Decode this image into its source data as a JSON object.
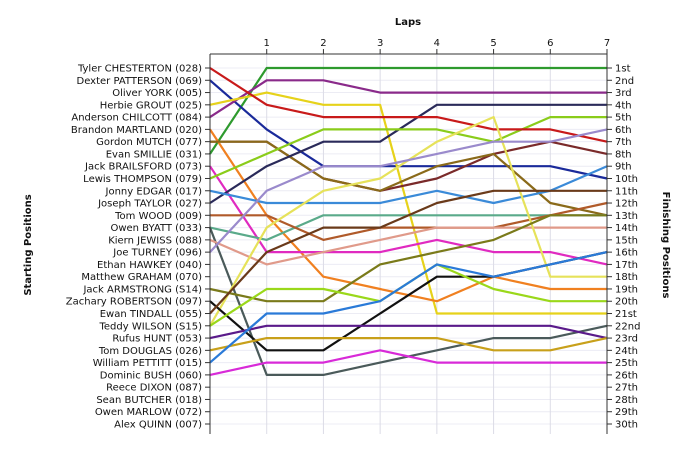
{
  "chart_data": {
    "type": "line",
    "x_title": "Laps",
    "y_left_title": "Starting Positions",
    "y_right_title": "Finishing Positions",
    "x": [
      0,
      1,
      2,
      3,
      4,
      5,
      6,
      7
    ],
    "x_tick_labels": [
      "1",
      "2",
      "3",
      "4",
      "5",
      "6",
      "7"
    ],
    "y_range": [
      1,
      30
    ],
    "y_reversed": true,
    "grid": true,
    "starting_labels": [
      "Tyler CHESTERTON (028)",
      "Dexter PATTERSON (069)",
      "Oliver YORK (005)",
      "Herbie GROUT (025)",
      "Anderson CHILCOTT (084)",
      "Brandon MARTLAND (020)",
      "Gordon MUTCH (077)",
      "Evan SMILLIE (031)",
      "Jack BRAILSFORD (073)",
      "Lewis THOMPSON (079)",
      "Jonny EDGAR (017)",
      "Joseph TAYLOR (027)",
      "Tom WOOD (009)",
      "Owen BYATT (033)",
      "Kiern JEWISS (088)",
      "Joe TURNEY (096)",
      "Ethan HAWKEY (040)",
      "Matthew GRAHAM (070)",
      "Jack ARMSTRONG (S14)",
      "Zachary ROBERTSON (097)",
      "Ewan TINDALL (055)",
      "Teddy WILSON (S15)",
      "Rufus HUNT (053)",
      "Tom DOUGLAS (026)",
      "William PETTITT (015)",
      "Dominic BUSH (060)",
      "Reece DIXON (087)",
      "Sean BUTCHER (018)",
      "Owen MARLOW (072)",
      "Alex QUINN (007)"
    ],
    "finishing_labels": [
      "1st",
      "2nd",
      "3rd",
      "4th",
      "5th",
      "6th",
      "7th",
      "8th",
      "9th",
      "10th",
      "11th",
      "12th",
      "13th",
      "14th",
      "15th",
      "16th",
      "17th",
      "18th",
      "19th",
      "20th",
      "21st",
      "22nd",
      "23rd",
      "24th",
      "25th",
      "26th",
      "27th",
      "28th",
      "29th",
      "30th"
    ],
    "series": [
      {
        "color": "#2e9a2e",
        "values": [
          8,
          1,
          1,
          1,
          1,
          1,
          1,
          1
        ]
      },
      {
        "color": "#1a2a9a",
        "values": [
          2,
          6,
          9,
          9,
          9,
          9,
          9,
          10
        ]
      },
      {
        "color": "#8a2a8a",
        "values": [
          5,
          2,
          2,
          3,
          3,
          3,
          3,
          3
        ]
      },
      {
        "color": "#e6d21a",
        "values": [
          4,
          3,
          4,
          4,
          21,
          21,
          21,
          21
        ]
      },
      {
        "color": "#7a2a2a",
        "values": [
          7,
          7,
          10,
          11,
          10,
          8,
          7,
          8
        ]
      },
      {
        "color": "#f08020",
        "values": [
          6,
          13,
          18,
          19,
          20,
          18,
          19,
          19
        ]
      },
      {
        "color": "#8a6a1a",
        "values": [
          7,
          7,
          10,
          11,
          9,
          8,
          12,
          13
        ]
      },
      {
        "color": "#e02ac0",
        "values": [
          9,
          16,
          16,
          16,
          15,
          16,
          16,
          17
        ]
      },
      {
        "color": "#2a2a5a",
        "values": [
          12,
          9,
          7,
          7,
          4,
          4,
          4,
          4
        ]
      },
      {
        "color": "#8acc1a",
        "values": [
          10,
          8,
          6,
          6,
          6,
          7,
          5,
          5
        ]
      },
      {
        "color": "#c81a1a",
        "values": [
          1,
          4,
          5,
          5,
          5,
          6,
          6,
          7
        ]
      },
      {
        "color": "#3a8ad8",
        "values": [
          11,
          12,
          12,
          12,
          11,
          12,
          11,
          9
        ]
      },
      {
        "color": "#5aaa8a",
        "values": [
          14,
          15,
          13,
          13,
          13,
          13,
          13,
          13
        ]
      },
      {
        "color": "#4a5a5a",
        "values": [
          14,
          26,
          26,
          25,
          24,
          23,
          23,
          22
        ]
      },
      {
        "color": "#b05a2a",
        "values": [
          13,
          13,
          15,
          14,
          14,
          14,
          13,
          12
        ]
      },
      {
        "color": "#e09a8a",
        "values": [
          15,
          17,
          16,
          15,
          14,
          14,
          14,
          14
        ]
      },
      {
        "color": "#e6e25a",
        "values": [
          22,
          14,
          11,
          10,
          7,
          5,
          18,
          18
        ]
      },
      {
        "color": "#9a8acc",
        "values": [
          16,
          11,
          9,
          9,
          8,
          7,
          7,
          6
        ]
      },
      {
        "color": "#7a7a1a",
        "values": [
          19,
          20,
          20,
          17,
          16,
          15,
          13,
          13
        ]
      },
      {
        "color": "#111111",
        "values": [
          20,
          24,
          24,
          21,
          18,
          18,
          17,
          16
        ]
      },
      {
        "color": "#6a3a1a",
        "values": [
          21,
          16,
          14,
          14,
          12,
          11,
          11,
          11
        ]
      },
      {
        "color": "#9ad81a",
        "values": [
          22,
          19,
          19,
          20,
          17,
          19,
          20,
          20
        ]
      },
      {
        "color": "#5a1a8a",
        "values": [
          23,
          22,
          22,
          22,
          22,
          22,
          22,
          23
        ]
      },
      {
        "color": "#c8a01a",
        "values": [
          24,
          23,
          23,
          23,
          23,
          24,
          24,
          23
        ]
      },
      {
        "color": "#d82ad8",
        "values": [
          26,
          25,
          25,
          24,
          25,
          25,
          25,
          25
        ]
      },
      {
        "color": "#2a7ad8",
        "values": [
          25,
          21,
          21,
          20,
          17,
          18,
          17,
          16
        ]
      }
    ]
  }
}
